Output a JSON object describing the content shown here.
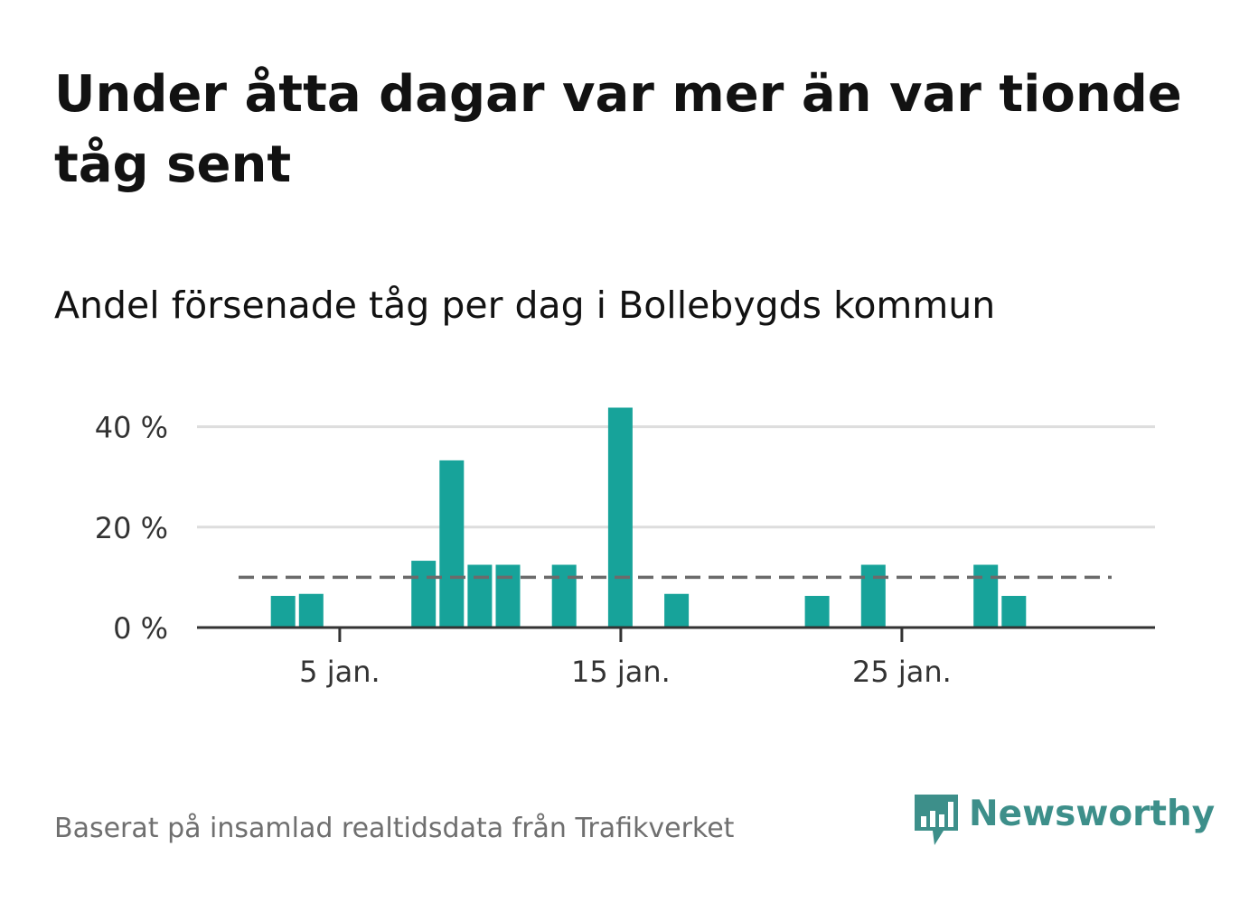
{
  "title": "Under åtta dagar var mer än var tionde tåg sent",
  "subtitle": "Andel försenade tåg per dag i Bollebygds kommun",
  "source": "Baserat på insamlad realtidsdata från Trafikverket",
  "brand": {
    "name": "Newsworthy",
    "color": "#3d8f8a",
    "icon": "chart-bubble-icon"
  },
  "colors": {
    "bar": "#17a39a",
    "reference_line": "#6b6b6b",
    "grid": "#dddddd",
    "axis": "#333333"
  },
  "chart_data": {
    "type": "bar",
    "x_unit": "day of January",
    "x": [
      1,
      2,
      3,
      4,
      5,
      6,
      7,
      8,
      9,
      10,
      11,
      12,
      13,
      14,
      15,
      16,
      17,
      18,
      19,
      20,
      21,
      22,
      23,
      24,
      25,
      26,
      27,
      28,
      29,
      30,
      31
    ],
    "values": [
      0,
      0,
      6.3,
      6.7,
      0,
      0,
      0,
      13.3,
      33.3,
      12.5,
      12.5,
      0,
      12.5,
      0,
      43.8,
      0,
      6.7,
      0,
      0,
      0,
      0,
      6.3,
      0,
      12.5,
      0,
      0,
      0,
      12.5,
      6.3,
      0,
      0
    ],
    "reference_line": {
      "value": 10,
      "style": "dashed"
    },
    "ylim": [
      0,
      45
    ],
    "yticks": [
      0,
      20,
      40
    ],
    "ytick_labels": [
      "0 %",
      "20 %",
      "40 %"
    ],
    "xticks": [
      5,
      15,
      25
    ],
    "xtick_labels": [
      "5 jan.",
      "15 jan.",
      "25 jan."
    ],
    "xlabel": "",
    "ylabel": "",
    "grid": true,
    "legend": "none"
  }
}
